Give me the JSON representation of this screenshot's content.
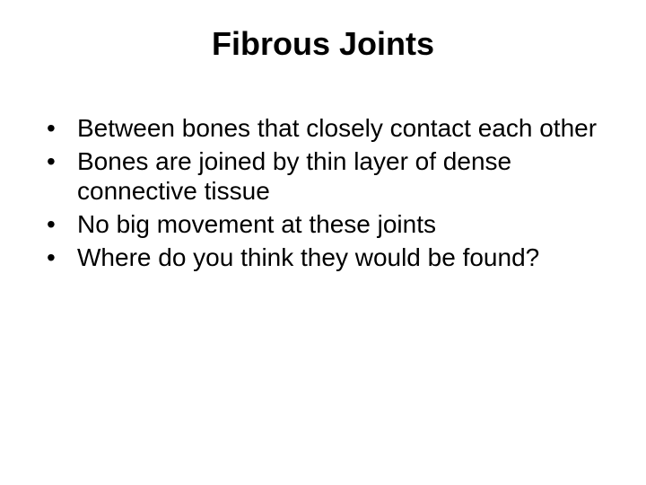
{
  "slide": {
    "title": "Fibrous Joints",
    "title_fontsize": 36,
    "title_weight": "bold",
    "title_align": "center",
    "body_fontsize": 28,
    "background_color": "#ffffff",
    "text_color": "#000000",
    "font_family": "Arial",
    "bullets": [
      "Between bones that closely contact each other",
      "Bones are joined by thin layer of dense connective tissue",
      "No big movement at these joints",
      "Where do you think they would be found?"
    ]
  }
}
